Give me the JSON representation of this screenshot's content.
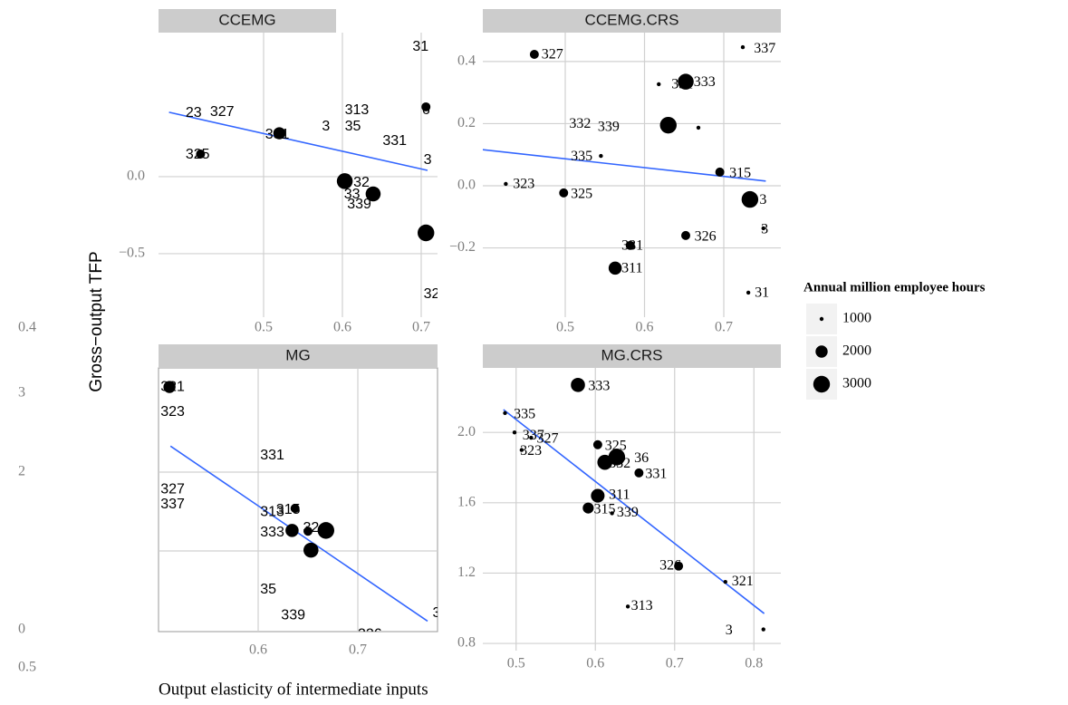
{
  "y_axis_label": "Gross−output TFP",
  "x_axis_label": "Output elasticity of intermediate inputs",
  "legend": {
    "title": "Annual million employee hours",
    "sizes": [
      1000,
      2000,
      3000
    ]
  },
  "stray_labels": [
    "0.4",
    "0.5"
  ],
  "chart_data": [
    {
      "type": "scatter",
      "title": "CCEMG",
      "color": "#000000",
      "grid": true,
      "x": [
        0.42,
        0.52,
        0.603,
        0.639,
        0.706,
        0.706
      ],
      "y": [
        0.147,
        0.282,
        -0.029,
        -0.112,
        -0.365,
        0.453
      ],
      "size": [
        1500,
        2000,
        2800,
        2600,
        3000,
        1500
      ],
      "labels": {
        "x": [
          0.689,
          0.401,
          0.432,
          0.502,
          0.401,
          0.574,
          0.603,
          0.603,
          0.651,
          0.701,
          0.703,
          0.614,
          0.602,
          0.606,
          0.703
        ],
        "y": [
          0.841,
          0.412,
          0.418,
          0.271,
          0.141,
          0.324,
          0.429,
          0.324,
          0.229,
          0.429,
          0.106,
          -0.041,
          -0.118,
          -0.182,
          -0.765
        ],
        "text": [
          "31",
          "23",
          "327",
          "331",
          "325",
          "3",
          "313",
          "35",
          "331",
          "6",
          "3",
          "32",
          "33",
          "339",
          "32"
        ]
      },
      "fit": {
        "x": [
          0.38,
          0.708
        ],
        "y": [
          0.418,
          0.041
        ],
        "color": "#3366ff"
      },
      "xlim": [
        0.3667,
        0.7207
      ],
      "ylim": [
        -0.912,
        0.935
      ],
      "xticks": [
        0.5,
        0.6,
        0.7
      ],
      "yticks": [
        {
          "value": 0,
          "label": "0.0"
        },
        {
          "value": -0.5,
          "label": "−0.5"
        }
      ]
    },
    {
      "type": "scatter",
      "title": "CCEMG.CRS",
      "color": "#000000",
      "grid": true,
      "x": [
        0.461,
        0.724,
        0.618,
        0.652,
        0.63,
        0.668,
        0.545,
        0.695,
        0.425,
        0.498,
        0.733,
        0.75,
        0.652,
        0.582,
        0.563,
        0.731
      ],
      "y": [
        0.423,
        0.446,
        0.327,
        0.335,
        0.195,
        0.187,
        0.096,
        0.044,
        0.006,
        -0.023,
        -0.044,
        -0.137,
        -0.16,
        -0.192,
        -0.265,
        -0.344
      ],
      "size": [
        1500,
        1000,
        1000,
        2800,
        3000,
        1000,
        1000,
        1500,
        1000,
        1500,
        3000,
        1000,
        1500,
        1500,
        2200,
        1000
      ],
      "labels": {
        "x": [
          0.47,
          0.738,
          0.634,
          0.662,
          0.505,
          0.541,
          0.507,
          0.707,
          0.434,
          0.507,
          0.745,
          0.747,
          0.663,
          0.571,
          0.571,
          0.739
        ],
        "y": [
          0.42,
          0.44,
          0.324,
          0.332,
          0.198,
          0.187,
          0.093,
          0.038,
          0.003,
          -0.029,
          -0.047,
          -0.143,
          -0.166,
          -0.195,
          -0.268,
          -0.347
        ],
        "text": [
          "327",
          "337",
          "331",
          "333",
          "332",
          "339",
          "335",
          "315",
          "323",
          "325",
          "3",
          "3",
          "326",
          "331",
          "311",
          "31"
        ]
      },
      "fit": {
        "x": [
          0.393,
          0.753
        ],
        "y": [
          0.117,
          0.015
        ],
        "color": "#3366ff"
      },
      "xlim": [
        0.396,
        0.772
      ],
      "ylim": [
        -0.423,
        0.493
      ],
      "xticks": [
        0.5,
        0.6,
        0.7
      ],
      "yticks": [
        0.4,
        0.2,
        {
          "value": 0,
          "label": "0.0"
        },
        {
          "value": -0.2,
          "label": "−0.2"
        }
      ]
    },
    {
      "type": "scatter",
      "title": "MG",
      "color": "#000000",
      "grid": true,
      "x": [
        0.511,
        0.637,
        0.634,
        0.65,
        0.668,
        0.653
      ],
      "y": [
        3.08,
        1.54,
        1.26,
        1.25,
        1.26,
        1.01
      ],
      "size": [
        2000,
        1500,
        2200,
        1500,
        3000,
        2600
      ],
      "labels": {
        "x": [
          0.502,
          0.502,
          0.602,
          0.502,
          0.502,
          0.602,
          0.618,
          0.602,
          0.645,
          0.602,
          0.623,
          0.7,
          0.775
        ],
        "y": [
          3.08,
          2.76,
          2.21,
          1.78,
          1.59,
          1.49,
          1.52,
          1.23,
          1.29,
          0.51,
          0.18,
          -0.06,
          0.21
        ],
        "text": [
          "321",
          "323",
          "331",
          "327",
          "337",
          "313",
          "315",
          "333",
          "32",
          "35",
          "339",
          "326",
          "3"
        ]
      },
      "fit": {
        "x": [
          0.512,
          0.77
        ],
        "y": [
          2.33,
          0.11
        ],
        "color": "#3366ff"
      },
      "xlim": [
        0.5,
        0.78
      ],
      "ylim": [
        -0.023,
        3.322
      ],
      "xticks": [
        0.6,
        0.7
      ],
      "yticks": [
        3,
        2,
        0
      ],
      "ygrid": [
        1,
        2
      ]
    },
    {
      "type": "scatter",
      "title": "MG.CRS",
      "color": "#000000",
      "grid": true,
      "x": [
        0.578,
        0.486,
        0.498,
        0.519,
        0.507,
        0.603,
        0.612,
        0.627,
        0.655,
        0.603,
        0.591,
        0.621,
        0.705,
        0.764,
        0.641,
        0.812
      ],
      "y": [
        2.27,
        2.11,
        2.0,
        1.97,
        1.9,
        1.93,
        1.83,
        1.86,
        1.77,
        1.64,
        1.57,
        1.54,
        1.24,
        1.15,
        1.01,
        0.88
      ],
      "size": [
        2400,
        1000,
        1000,
        1000,
        1000,
        1500,
        2600,
        3000,
        1500,
        2300,
        1800,
        1000,
        1500,
        1000,
        1000,
        1000
      ],
      "labels": {
        "x": [
          0.591,
          0.497,
          0.508,
          0.526,
          0.505,
          0.612,
          0.617,
          0.649,
          0.663,
          0.617,
          0.598,
          0.627,
          0.681,
          0.772,
          0.645,
          0.764
        ],
        "y": [
          2.26,
          2.1,
          1.98,
          1.96,
          1.89,
          1.92,
          1.82,
          1.85,
          1.76,
          1.64,
          1.56,
          1.54,
          1.24,
          1.15,
          1.01,
          0.87
        ],
        "text": [
          "333",
          "335",
          "337",
          "327",
          "323",
          "325",
          "332",
          "36",
          "331",
          "311",
          "315",
          "339",
          "326",
          "321",
          "313",
          "3"
        ]
      },
      "fit": {
        "x": [
          0.484,
          0.813
        ],
        "y": [
          2.13,
          0.97
        ],
        "color": "#3366ff"
      },
      "xlim": [
        0.458,
        0.834
      ],
      "ylim": [
        0.759,
        2.367
      ],
      "xticks": [
        0.5,
        0.6,
        0.7,
        0.8
      ],
      "yticks": [
        {
          "value": 2,
          "label": "2.0"
        },
        1.6,
        1.2,
        0.8
      ]
    }
  ]
}
